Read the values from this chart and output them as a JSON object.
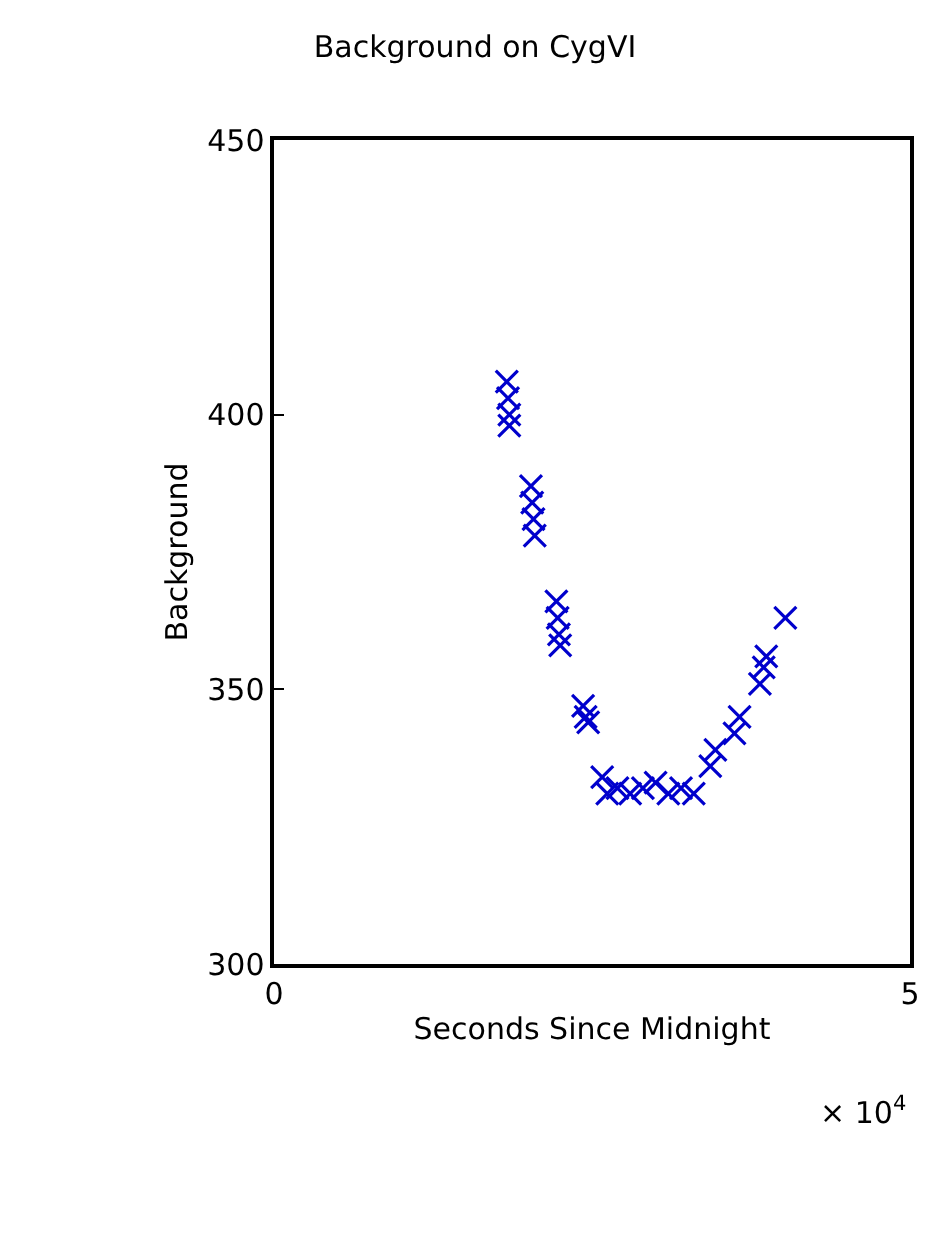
{
  "chart_data": {
    "type": "scatter",
    "title": "Background on CygVI",
    "xlabel": "Seconds Since Midnight",
    "ylabel": "Background",
    "annotations": [
      "× 10$^{4}$"
    ],
    "x": [
      1.83,
      1.84,
      1.85,
      1.85,
      2.02,
      2.03,
      2.04,
      2.05,
      2.22,
      2.23,
      2.24,
      2.25,
      2.43,
      2.45,
      2.47,
      2.58,
      2.62,
      2.7,
      2.8,
      2.9,
      3.0,
      3.1,
      3.2,
      3.3,
      3.43,
      3.47,
      3.62,
      3.66,
      3.82,
      3.85,
      3.87,
      4.02
    ],
    "series": [
      {
        "color": "#0000cc",
        "values": [
          406,
          403,
          400,
          398,
          387,
          384,
          381,
          378,
          366,
          363,
          360,
          358,
          347,
          345,
          344,
          334,
          331,
          332,
          331,
          332,
          333,
          331,
          332,
          331,
          336,
          339,
          342,
          345,
          351,
          354,
          356,
          363
        ]
      }
    ],
    "xlim": [
      0,
      5
    ],
    "xticks": [
      0,
      5
    ],
    "ylim": [
      300,
      450
    ],
    "yticks": [
      300,
      350,
      400,
      450
    ],
    "marker": "cross"
  }
}
